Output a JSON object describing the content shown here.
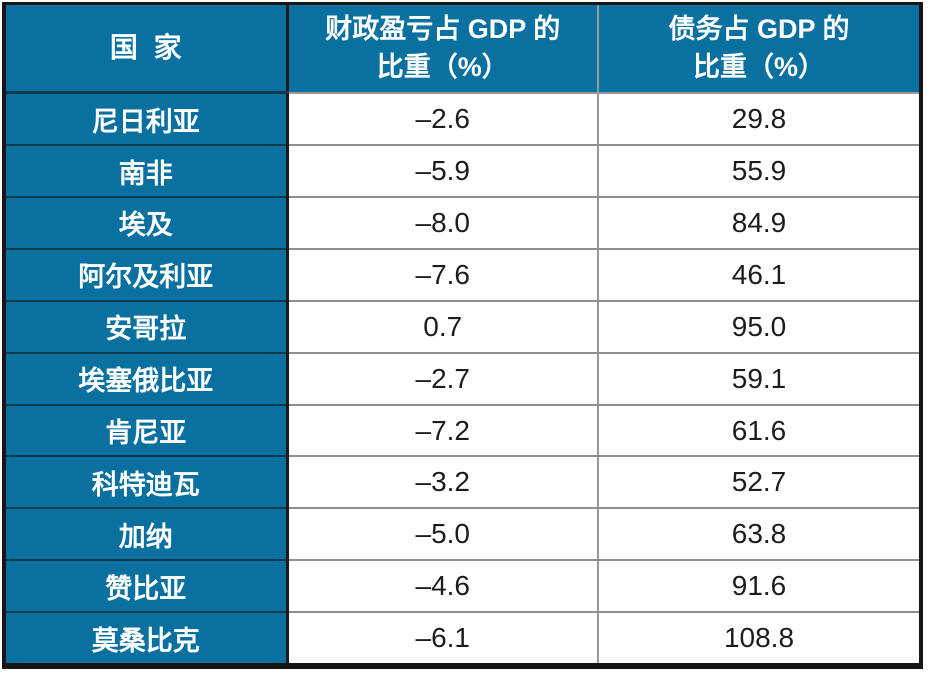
{
  "colors": {
    "accent": "#0A70A0",
    "header_text": "#FFFFFF",
    "body_text": "#1C1C1C",
    "grid_gray": "#8F8F8F",
    "grid_dark": "#1A1A1A",
    "grid_navy": "#0E3950",
    "outer_border": "#161616"
  },
  "table": {
    "header": {
      "country": "国 家",
      "fiscal_line1": "财政盈亏占 GDP 的",
      "fiscal_line2": "比重（%）",
      "debt_line1": "债务占 GDP 的",
      "debt_line2": "比重（%）"
    },
    "rows": [
      {
        "country": "尼日利亚",
        "fiscal": "–2.6",
        "debt": "29.8"
      },
      {
        "country": "南非",
        "fiscal": "–5.9",
        "debt": "55.9"
      },
      {
        "country": "埃及",
        "fiscal": "–8.0",
        "debt": "84.9"
      },
      {
        "country": "阿尔及利亚",
        "fiscal": "–7.6",
        "debt": "46.1"
      },
      {
        "country": "安哥拉",
        "fiscal": "0.7",
        "debt": "95.0"
      },
      {
        "country": "埃塞俄比亚",
        "fiscal": "–2.7",
        "debt": "59.1"
      },
      {
        "country": "肯尼亚",
        "fiscal": "–7.2",
        "debt": "61.6"
      },
      {
        "country": "科特迪瓦",
        "fiscal": "–3.2",
        "debt": "52.7"
      },
      {
        "country": "加纳",
        "fiscal": "–5.0",
        "debt": "63.8"
      },
      {
        "country": "赞比亚",
        "fiscal": "–4.6",
        "debt": "91.6"
      },
      {
        "country": "莫桑比克",
        "fiscal": "–6.1",
        "debt": "108.8"
      }
    ]
  },
  "chart_data": {
    "type": "table",
    "columns": [
      "国 家",
      "财政盈亏占 GDP 的比重（%）",
      "债务占 GDP 的比重（%）"
    ],
    "rows": [
      [
        "尼日利亚",
        -2.6,
        29.8
      ],
      [
        "南非",
        -5.9,
        55.9
      ],
      [
        "埃及",
        -8.0,
        84.9
      ],
      [
        "阿尔及利亚",
        -7.6,
        46.1
      ],
      [
        "安哥拉",
        0.7,
        95.0
      ],
      [
        "埃塞俄比亚",
        -2.7,
        59.1
      ],
      [
        "肯尼亚",
        -7.2,
        61.6
      ],
      [
        "科特迪瓦",
        -3.2,
        52.7
      ],
      [
        "加纳",
        -5.0,
        63.8
      ],
      [
        "赞比亚",
        -4.6,
        91.6
      ],
      [
        "莫桑比克",
        -6.1,
        108.8
      ]
    ]
  }
}
